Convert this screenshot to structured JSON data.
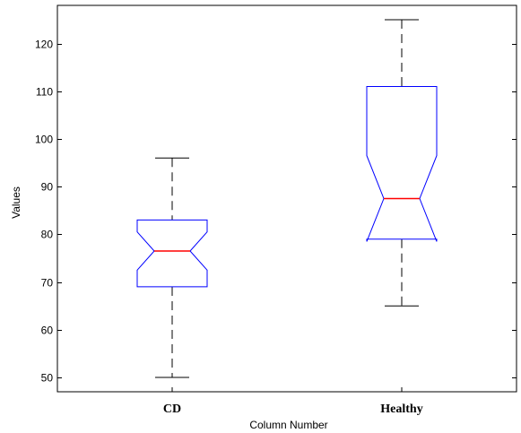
{
  "chart_data": {
    "type": "boxplot",
    "notched": true,
    "xlabel": "Column Number",
    "ylabel": "Values",
    "ylim": [
      47,
      128
    ],
    "yticks": [
      50,
      60,
      70,
      80,
      90,
      100,
      110,
      120
    ],
    "grid": false,
    "categories": [
      "CD",
      "Healthy"
    ],
    "boxes": [
      {
        "category": "CD",
        "whisker_low": 50,
        "q1": 69,
        "median": 76.5,
        "q3": 83,
        "whisker_high": 96,
        "notch_low": 72.5,
        "notch_high": 80.5
      },
      {
        "category": "Healthy",
        "whisker_low": 65,
        "q1": 79,
        "median": 87.5,
        "q3": 111,
        "whisker_high": 125,
        "notch_low": 78.5,
        "notch_high": 96.5
      }
    ],
    "colors": {
      "box": "#0000ff",
      "median": "#ff0000",
      "whisker": "#000000",
      "axes": "#000000"
    }
  }
}
